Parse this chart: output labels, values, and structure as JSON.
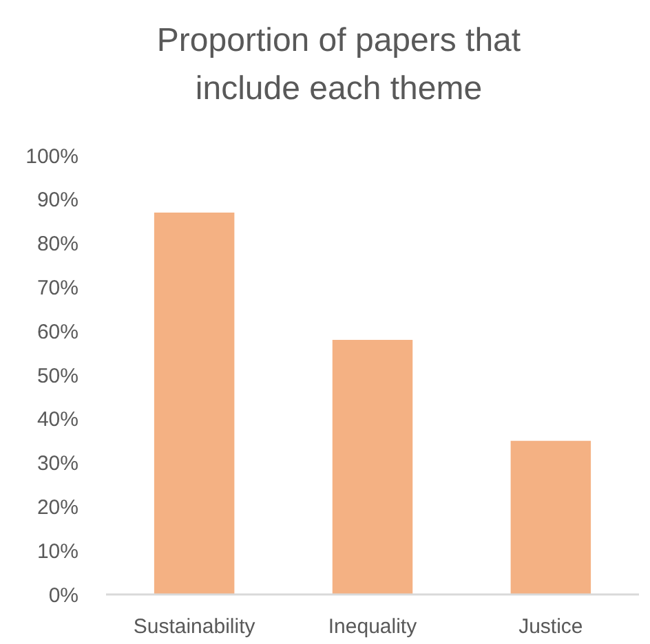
{
  "chart_data": {
    "type": "bar",
    "title": "Proportion of papers that include each theme",
    "categories": [
      "Sustainability",
      "Inequality",
      "Justice"
    ],
    "values": [
      87,
      58,
      35
    ],
    "color": "#f4b183",
    "ylim": [
      0,
      100
    ],
    "yticks": [
      {
        "value": 0,
        "label": "0%"
      },
      {
        "value": 10,
        "label": "10%"
      },
      {
        "value": 20,
        "label": "20%"
      },
      {
        "value": 30,
        "label": "30%"
      },
      {
        "value": 40,
        "label": "40%"
      },
      {
        "value": 50,
        "label": "50%"
      },
      {
        "value": 60,
        "label": "60%"
      },
      {
        "value": 70,
        "label": "70%"
      },
      {
        "value": 80,
        "label": "80%"
      },
      {
        "value": 90,
        "label": "90%"
      },
      {
        "value": 100,
        "label": "100%"
      }
    ],
    "grid": false
  }
}
